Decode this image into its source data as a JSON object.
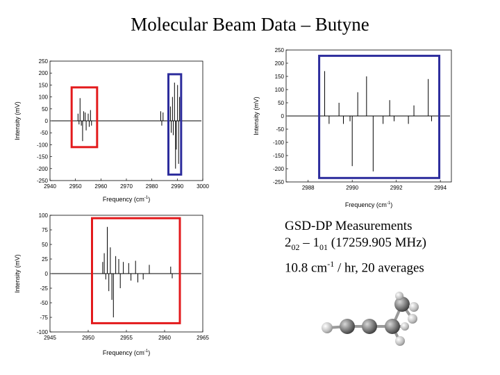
{
  "slide": {
    "title": "Molecular Beam Data – Butyne"
  },
  "caption": {
    "line1": "GSD-DP Measurements",
    "line2": {
      "a": "2",
      "a_sub": "02",
      "dash": " – ",
      "b": "1",
      "b_sub": "01",
      "rest": " (17259.905 MHz)"
    },
    "line3": {
      "pre": "10.8 cm",
      "sup": "-1",
      "post": " / hr, 20 averages"
    }
  },
  "colors": {
    "red_box": "#e31a1c",
    "blue_box": "#2c2c9c",
    "trace": "#000000"
  },
  "chart_data": [
    {
      "type": "line",
      "name": "top-left",
      "xlabel": "Frequency (cm",
      "xlabel_sup": "-1",
      "xlabel_end": ")",
      "ylabel": "Intensity (mV)",
      "xlim": [
        2940,
        3000
      ],
      "ylim": [
        -250,
        250
      ],
      "xticks": [
        2940,
        2950,
        2960,
        2970,
        2980,
        2990,
        3000
      ],
      "yticks": [
        -250,
        -200,
        -150,
        -100,
        -50,
        0,
        50,
        100,
        150,
        200,
        250
      ],
      "series": [
        {
          "peaks": [
            [
              2951.0,
              30
            ],
            [
              2951.4,
              -15
            ],
            [
              2951.8,
              95
            ],
            [
              2952.3,
              -20
            ],
            [
              2952.8,
              -85
            ],
            [
              2953.2,
              40
            ],
            [
              2953.8,
              35
            ],
            [
              2954.2,
              -40
            ],
            [
              2955.0,
              30
            ],
            [
              2955.4,
              -25
            ],
            [
              2955.9,
              45
            ],
            [
              2956.3,
              -20
            ],
            [
              2983.5,
              40
            ],
            [
              2983.9,
              -20
            ],
            [
              2984.4,
              35
            ],
            [
              2987.3,
              60
            ],
            [
              2987.6,
              -50
            ],
            [
              2988.1,
              100
            ],
            [
              2988.4,
              -60
            ],
            [
              2988.9,
              160
            ],
            [
              2989.3,
              -200
            ],
            [
              2989.6,
              -120
            ],
            [
              2990.1,
              150
            ],
            [
              2990.5,
              -180
            ],
            [
              2990.9,
              100
            ],
            [
              2991.3,
              -60
            ]
          ]
        }
      ],
      "boxes": [
        {
          "color": "red",
          "x": [
            2948.5,
            2958.5
          ],
          "y": [
            -110,
            140
          ]
        },
        {
          "color": "blue",
          "x": [
            2986.5,
            2991.5
          ],
          "y": [
            -225,
            195
          ]
        }
      ]
    },
    {
      "type": "line",
      "name": "top-right",
      "xlabel": "Frequency (cm",
      "xlabel_sup": "-1",
      "xlabel_end": ")",
      "ylabel": "Intensity (mV)",
      "xlim": [
        2987,
        2994.5
      ],
      "ylim": [
        -250,
        250
      ],
      "xticks": [
        2988,
        2990,
        2992,
        2994
      ],
      "yticks": [
        -250,
        -200,
        -150,
        -100,
        -50,
        0,
        50,
        100,
        150,
        200,
        250
      ],
      "series": [
        {
          "peaks": [
            [
              2988.75,
              170
            ],
            [
              2988.95,
              -30
            ],
            [
              2989.4,
              50
            ],
            [
              2989.6,
              -30
            ],
            [
              2989.9,
              -20
            ],
            [
              2990.0,
              -190
            ],
            [
              2990.25,
              90
            ],
            [
              2990.65,
              150
            ],
            [
              2990.95,
              -210
            ],
            [
              2991.4,
              -30
            ],
            [
              2991.7,
              60
            ],
            [
              2991.9,
              -20
            ],
            [
              2992.55,
              -30
            ],
            [
              2992.8,
              40
            ],
            [
              2993.45,
              140
            ],
            [
              2993.6,
              -20
            ]
          ]
        }
      ],
      "boxes": [
        {
          "color": "blue",
          "x": [
            2988.5,
            2993.95
          ],
          "y": [
            -235,
            228
          ]
        }
      ]
    },
    {
      "type": "line",
      "name": "bottom-left",
      "xlabel": "Frequency (cm",
      "xlabel_sup": "-1",
      "xlabel_end": ")",
      "ylabel": "Intensity (mV)",
      "xlim": [
        2945,
        2965
      ],
      "ylim": [
        -100,
        100
      ],
      "xticks": [
        2945,
        2950,
        2955,
        2960,
        2965
      ],
      "yticks": [
        -100,
        -75,
        -50,
        -25,
        0,
        25,
        50,
        75,
        100
      ],
      "series": [
        {
          "peaks": [
            [
              2951.9,
              20
            ],
            [
              2952.1,
              35
            ],
            [
              2952.3,
              -10
            ],
            [
              2952.5,
              80
            ],
            [
              2952.7,
              -30
            ],
            [
              2952.9,
              45
            ],
            [
              2953.1,
              -45
            ],
            [
              2953.3,
              -75
            ],
            [
              2953.6,
              30
            ],
            [
              2954.0,
              25
            ],
            [
              2954.2,
              -25
            ],
            [
              2954.6,
              20
            ],
            [
              2955.3,
              18
            ],
            [
              2955.6,
              -12
            ],
            [
              2956.2,
              22
            ],
            [
              2956.5,
              -15
            ],
            [
              2957.2,
              -10
            ],
            [
              2958.0,
              15
            ],
            [
              2960.8,
              12
            ],
            [
              2961.0,
              -8
            ]
          ]
        }
      ],
      "boxes": [
        {
          "color": "red",
          "x": [
            2950.5,
            2962.0
          ],
          "y": [
            -85,
            95
          ]
        }
      ]
    }
  ]
}
